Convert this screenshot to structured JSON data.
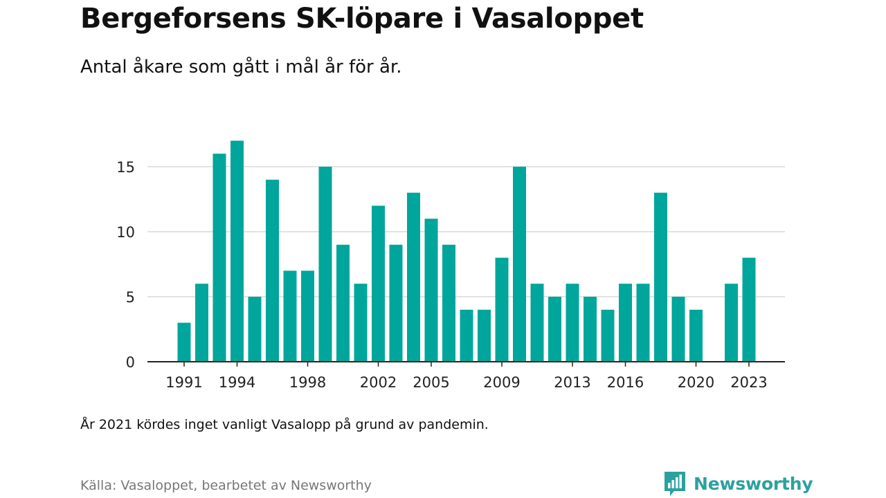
{
  "title": "Bergeforsens SK-löpare i Vasaloppet",
  "subtitle": "Antal åkare som gått i mål år för år.",
  "note": "År 2021 kördes inget vanligt Vasalopp på grund av pandemin.",
  "source": "Källa: Vasaloppet, bearbetet av Newsworthy",
  "brand": {
    "name": "Newsworthy",
    "icon": "newsworthy-logo-icon",
    "color": "#2ba19f"
  },
  "chart_data": {
    "type": "bar",
    "color": "#00a69b",
    "categories": [
      1991,
      1992,
      1993,
      1994,
      1995,
      1996,
      1997,
      1998,
      1999,
      2000,
      2001,
      2002,
      2003,
      2004,
      2005,
      2006,
      2007,
      2008,
      2009,
      2010,
      2011,
      2012,
      2013,
      2014,
      2015,
      2016,
      2017,
      2018,
      2019,
      2020,
      2021,
      2022,
      2023
    ],
    "values": [
      3,
      6,
      16,
      17,
      5,
      14,
      7,
      7,
      15,
      9,
      6,
      12,
      9,
      13,
      11,
      9,
      4,
      4,
      8,
      15,
      6,
      5,
      6,
      5,
      4,
      6,
      6,
      13,
      5,
      4,
      null,
      6,
      8
    ],
    "x_tick_labels": [
      1991,
      1994,
      1998,
      2002,
      2005,
      2009,
      2013,
      2016,
      2020,
      2023
    ],
    "y_ticks": [
      0,
      5,
      10,
      15
    ],
    "ylim": [
      0,
      17
    ],
    "grid": true,
    "xlabel": "",
    "ylabel": ""
  }
}
